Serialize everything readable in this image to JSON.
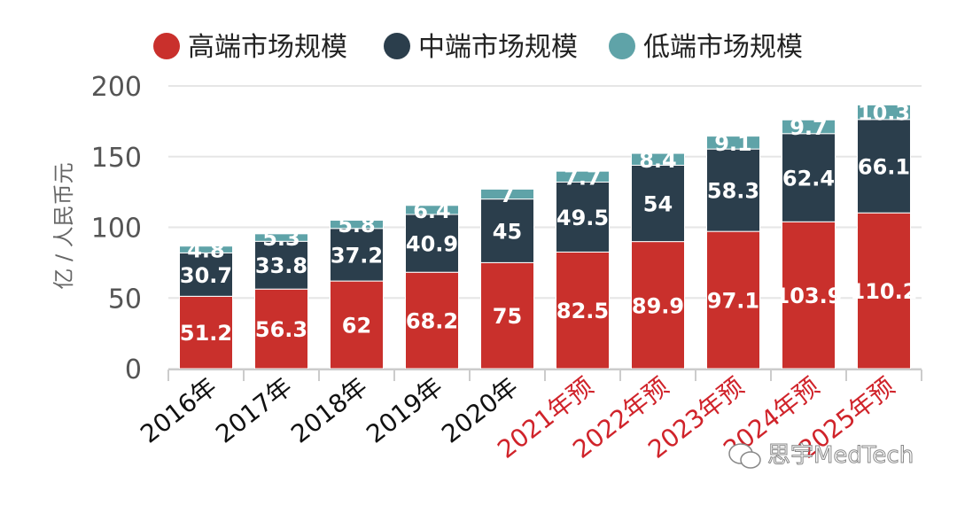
{
  "chart_data": {
    "type": "bar",
    "stacked": true,
    "categories": [
      "2016年",
      "2017年",
      "2018年",
      "2019年",
      "2020年",
      "2021年预",
      "2022年预",
      "2023年预",
      "2024年预",
      "2025年预"
    ],
    "forecast_categories": [
      "2021年预",
      "2022年预",
      "2023年预",
      "2024年预",
      "2025年预"
    ],
    "series": [
      {
        "name": "高端市场规模",
        "color": "#c9302c",
        "values": [
          51.2,
          56.3,
          62,
          68.2,
          75,
          82.5,
          89.9,
          97.1,
          103.9,
          110.2
        ]
      },
      {
        "name": "中端市场规模",
        "color": "#2b3e4c",
        "values": [
          30.7,
          33.8,
          37.2,
          40.9,
          45,
          49.5,
          54,
          58.3,
          62.4,
          66.1
        ]
      },
      {
        "name": "低端市场规模",
        "color": "#5fa3a8",
        "values": [
          4.8,
          5.3,
          5.8,
          6.4,
          7,
          7.7,
          8.4,
          9.1,
          9.7,
          10.3
        ]
      }
    ],
    "ylabel": "亿 / 人民币元",
    "ylim": [
      0,
      200
    ],
    "yticks": [
      0,
      50,
      100,
      150,
      200
    ],
    "grid": true,
    "legend_position": "top",
    "colors": {
      "actual_label": "#111111",
      "forecast_label": "#d0232a",
      "grid": "#e6e6e6",
      "axis": "#cccccc"
    }
  },
  "watermark": {
    "text": "思宇MedTech",
    "icon": "wechat-icon"
  }
}
